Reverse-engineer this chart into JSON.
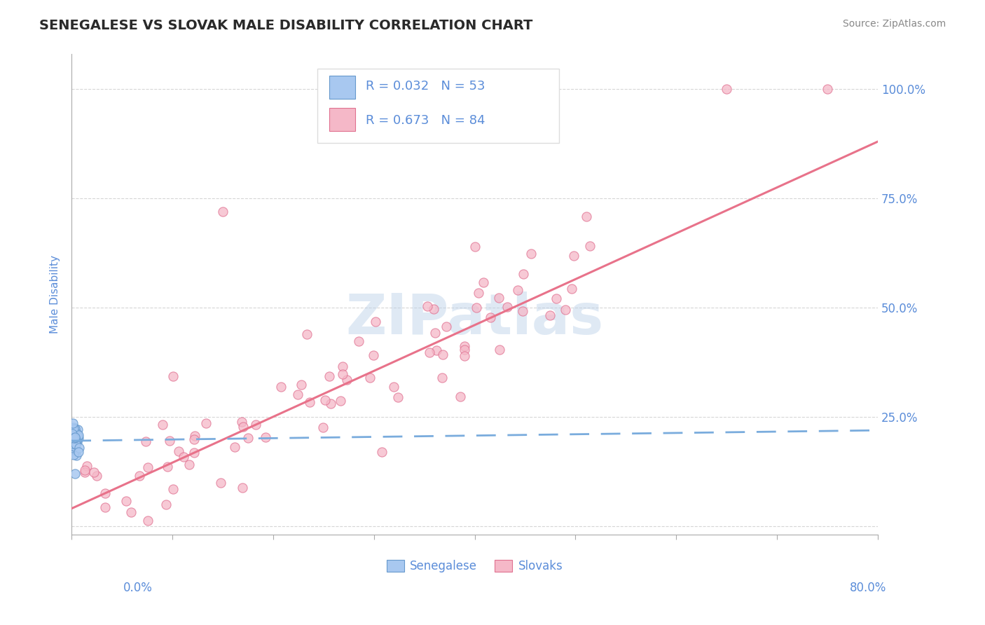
{
  "title": "SENEGALESE VS SLOVAK MALE DISABILITY CORRELATION CHART",
  "source": "Source: ZipAtlas.com",
  "ylabel_label": "Male Disability",
  "xlim": [
    0,
    0.8
  ],
  "ylim": [
    -0.02,
    1.08
  ],
  "senegalese_color": "#a8c8f0",
  "senegalese_edge": "#6699cc",
  "slovak_color": "#f5b8c8",
  "slovak_edge": "#e07090",
  "trend_senegalese_color": "#7aacdd",
  "trend_slovak_color": "#e8728a",
  "watermark": "ZIPatlas",
  "background_color": "#ffffff",
  "grid_color": "#cccccc",
  "title_color": "#2a2a2a",
  "axis_label_color": "#5b8dd9",
  "senegalese_intercept": 0.195,
  "senegalese_slope": 0.03,
  "slovak_intercept": 0.04,
  "slovak_slope": 1.05
}
